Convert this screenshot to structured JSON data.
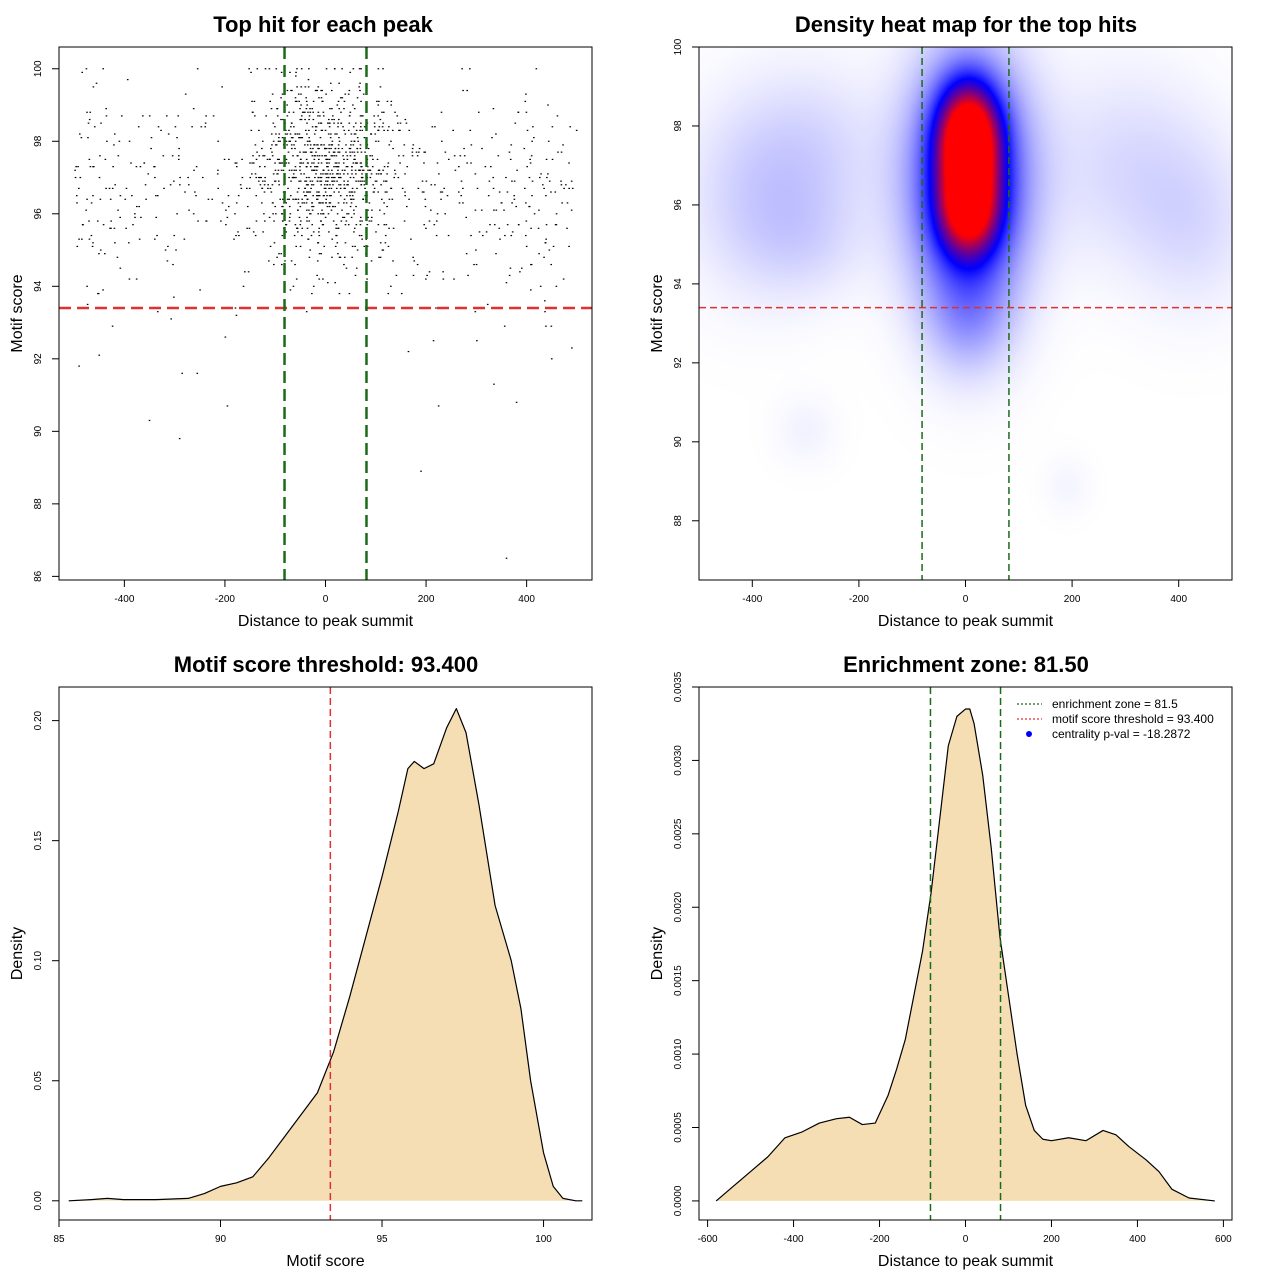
{
  "colors": {
    "threshold_line": "#e03030",
    "zone_line": "#1a6b1a",
    "density_fill": "#f5deb3",
    "points": "#000000",
    "heat_low": "#ffffff",
    "heat_mid": "#0000ff",
    "heat_high": "#ff0000",
    "legend_dot": "#0000ff"
  },
  "chart_data": [
    {
      "type": "scatter",
      "title": "Top hit for each peak",
      "xlabel": "Distance to peak summit",
      "ylabel": "Motif score",
      "xlim": [
        -530,
        530
      ],
      "ylim": [
        85.9,
        100.6
      ],
      "xticks": [
        -400,
        -200,
        0,
        200,
        400
      ],
      "yticks": [
        86,
        88,
        90,
        92,
        94,
        96,
        98,
        100
      ],
      "hlines": [
        93.4
      ],
      "vlines": [
        -81.5,
        81.5
      ],
      "point_distribution": {
        "n_points": 1400,
        "x_range": [
          -500,
          500
        ],
        "center_sd": 70,
        "score_range": [
          86.5,
          100.0
        ],
        "score_mode": 97.2
      },
      "outliers": [
        {
          "x": 360,
          "y": 86.5
        },
        {
          "x": 190,
          "y": 88.9
        },
        {
          "x": -290,
          "y": 89.8
        },
        {
          "x": -350,
          "y": 90.3
        },
        {
          "x": 380,
          "y": 90.8
        },
        {
          "x": 225,
          "y": 90.7
        },
        {
          "x": -195,
          "y": 90.7
        },
        {
          "x": -490,
          "y": 91.8
        },
        {
          "x": -450,
          "y": 92.1
        },
        {
          "x": 490,
          "y": 92.3
        },
        {
          "x": 335,
          "y": 91.3
        },
        {
          "x": -285,
          "y": 91.6
        },
        {
          "x": -255,
          "y": 91.6
        },
        {
          "x": 450,
          "y": 92.0
        },
        {
          "x": 165,
          "y": 92.2
        }
      ]
    },
    {
      "type": "heatmap",
      "title": "Density heat map for the top hits",
      "xlabel": "Distance to peak summit",
      "ylabel": "Motif score",
      "xlim": [
        -500,
        500
      ],
      "ylim": [
        86.5,
        100
      ],
      "xticks": [
        -400,
        -200,
        0,
        200,
        400
      ],
      "yticks": [
        88,
        90,
        92,
        94,
        96,
        98,
        100
      ],
      "hlines": [
        93.4
      ],
      "vlines": [
        -81.5,
        81.5
      ],
      "color_scale": [
        "white",
        "blue",
        "red"
      ],
      "blobs": [
        {
          "x": 5,
          "y": 97.7,
          "sx": 38,
          "sy": 0.9,
          "w": 1.0
        },
        {
          "x": 5,
          "y": 95.9,
          "sx": 38,
          "sy": 0.8,
          "w": 0.75
        },
        {
          "x": 5,
          "y": 96.6,
          "sx": 75,
          "sy": 2.1,
          "w": 0.55
        },
        {
          "x": 5,
          "y": 93.2,
          "sx": 55,
          "sy": 1.0,
          "w": 0.12
        },
        {
          "x": -400,
          "y": 96.3,
          "sx": 90,
          "sy": 1.7,
          "w": 0.08
        },
        {
          "x": -280,
          "y": 97.3,
          "sx": 90,
          "sy": 1.5,
          "w": 0.07
        },
        {
          "x": 300,
          "y": 97.0,
          "sx": 110,
          "sy": 1.7,
          "w": 0.07
        },
        {
          "x": 430,
          "y": 95.5,
          "sx": 80,
          "sy": 1.5,
          "w": 0.06
        },
        {
          "x": -300,
          "y": 95.0,
          "sx": 80,
          "sy": 1.0,
          "w": 0.05
        },
        {
          "x": -300,
          "y": 90.3,
          "sx": 40,
          "sy": 0.6,
          "w": 0.025
        },
        {
          "x": 190,
          "y": 88.9,
          "sx": 30,
          "sy": 0.5,
          "w": 0.02
        }
      ]
    },
    {
      "type": "area",
      "title": "Motif score threshold: 93.400",
      "xlabel": "Motif score",
      "ylabel": "Density",
      "xlim": [
        85.0,
        101.5
      ],
      "ylim": [
        -0.008,
        0.214
      ],
      "xticks": [
        85,
        90,
        95,
        100
      ],
      "yticks": [
        0.0,
        0.05,
        0.1,
        0.15,
        0.2
      ],
      "ytick_labels": [
        "0.00",
        "0.05",
        "0.10",
        "0.15",
        "0.20"
      ],
      "vlines": [
        93.4
      ],
      "x": [
        85.3,
        86.0,
        86.5,
        87.0,
        88.0,
        89.0,
        89.5,
        90.0,
        90.5,
        91.0,
        91.5,
        92.0,
        92.5,
        93.0,
        93.5,
        94.0,
        94.5,
        95.0,
        95.5,
        95.8,
        96.0,
        96.3,
        96.6,
        97.0,
        97.3,
        97.6,
        98.0,
        98.5,
        99.0,
        99.3,
        99.6,
        100.0,
        100.3,
        100.6,
        101.0,
        101.2
      ],
      "y": [
        0.0,
        0.0005,
        0.001,
        0.0005,
        0.0005,
        0.001,
        0.003,
        0.006,
        0.0075,
        0.01,
        0.018,
        0.027,
        0.036,
        0.045,
        0.062,
        0.085,
        0.11,
        0.135,
        0.162,
        0.18,
        0.183,
        0.18,
        0.182,
        0.197,
        0.205,
        0.195,
        0.165,
        0.123,
        0.1,
        0.08,
        0.05,
        0.02,
        0.006,
        0.001,
        0.0,
        0.0
      ]
    },
    {
      "type": "area",
      "title": "Enrichment zone: 81.50",
      "xlabel": "Distance to peak summit",
      "ylabel": "Density",
      "xlim": [
        -620,
        620
      ],
      "ylim": [
        -0.00013,
        0.0035
      ],
      "xticks": [
        -600,
        -400,
        -200,
        0,
        200,
        400,
        600
      ],
      "yticks": [
        0.0,
        0.0005,
        0.001,
        0.0015,
        0.002,
        0.0025,
        0.003,
        0.0035
      ],
      "ytick_labels": [
        "0.0000",
        "0.0005",
        "0.0010",
        "0.0015",
        "0.0020",
        "0.0025",
        "0.0030",
        "0.0035"
      ],
      "vlines": [
        -81.5,
        81.5
      ],
      "x": [
        -580,
        -540,
        -500,
        -460,
        -420,
        -380,
        -340,
        -300,
        -270,
        -240,
        -210,
        -180,
        -160,
        -140,
        -120,
        -100,
        -80,
        -60,
        -40,
        -20,
        0,
        10,
        20,
        40,
        60,
        80,
        100,
        120,
        140,
        160,
        180,
        200,
        240,
        280,
        320,
        350,
        380,
        420,
        450,
        480,
        520,
        580
      ],
      "y": [
        0.0,
        0.0001,
        0.0002,
        0.0003,
        0.00043,
        0.00047,
        0.00053,
        0.00056,
        0.00057,
        0.00052,
        0.00053,
        0.00072,
        0.0009,
        0.0011,
        0.0014,
        0.0017,
        0.0021,
        0.0026,
        0.0031,
        0.0033,
        0.00335,
        0.00335,
        0.00325,
        0.0029,
        0.0024,
        0.0018,
        0.0014,
        0.001,
        0.00065,
        0.00048,
        0.00042,
        0.00041,
        0.00043,
        0.00041,
        0.00048,
        0.00045,
        0.00037,
        0.00028,
        0.0002,
        8e-05,
        2e-05,
        0.0
      ],
      "legend": {
        "position": "top-right",
        "entries": [
          {
            "label": "enrichment zone = 81.5",
            "color": "#1a6b1a",
            "style": "dotted-line"
          },
          {
            "label": "motif score threshold = 93.400",
            "color": "#e03030",
            "style": "dotted-line"
          },
          {
            "label": "centrality p-val = -18.2872",
            "color": "#0000ff",
            "style": "point"
          }
        ]
      }
    }
  ]
}
